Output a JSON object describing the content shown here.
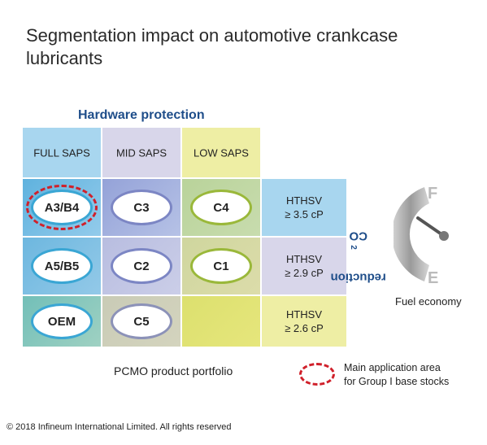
{
  "title": "Segmentation impact on automotive crankcase lubricants",
  "hardware_label": "Hardware protection",
  "columns": [
    "FULL SAPS",
    "MID SAPS",
    "LOW SAPS"
  ],
  "rows": [
    {
      "cells": [
        "A3/B4",
        "C3",
        "C4"
      ],
      "hthsv": [
        "HTHSV",
        "≥ 3.5 cP"
      ]
    },
    {
      "cells": [
        "A5/B5",
        "C2",
        "C1"
      ],
      "hthsv": [
        "HTHSV",
        "≥ 2.9 cP"
      ]
    },
    {
      "cells": [
        "OEM",
        "C5",
        ""
      ],
      "hthsv": [
        "HTHSV",
        "≥ 2.6 cP"
      ]
    }
  ],
  "co2_label": {
    "prefix": "CO",
    "sub": "2",
    "suffix": " reduction"
  },
  "gauge": {
    "full": "F",
    "empty": "E",
    "label": "Fuel economy"
  },
  "portfolio_label": "PCMO product portfolio",
  "legend": {
    "line1": "Main application area",
    "line2": "for Group I base stocks"
  },
  "copyright": "© 2018 Infineum International Limited. All rights reserved",
  "colors": {
    "full_header": "#a8d6ef",
    "mid_header": "#d8d6ea",
    "low_header": "#eeeea4",
    "blue_text": "#1f4e8a",
    "highlight_dash": "#d0202a",
    "oval_blue": "#3aa6d4",
    "oval_purple": "#7c86c4",
    "oval_green": "#9ab83a"
  }
}
